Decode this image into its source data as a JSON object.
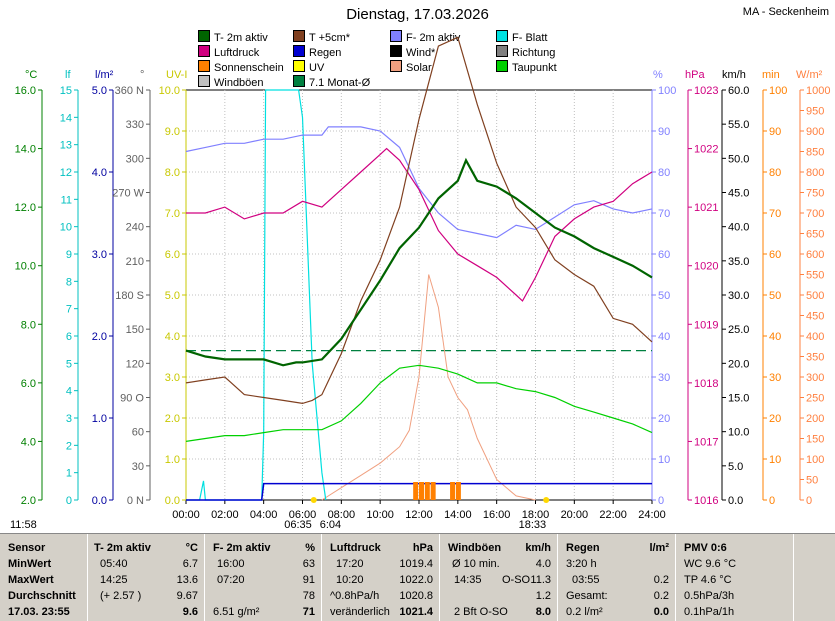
{
  "title": "Dienstag, 17.03.2026",
  "station": "MA - Seckenheim",
  "legend": [
    {
      "label": "T- 2m aktiv",
      "color": "#006400"
    },
    {
      "label": "T +5cm*",
      "color": "#804020"
    },
    {
      "label": "F- 2m aktiv",
      "color": "#8080ff"
    },
    {
      "label": "F- Blatt",
      "color": "#00e0e0"
    },
    {
      "label": "Luftdruck",
      "color": "#d00080"
    },
    {
      "label": "Regen",
      "color": "#0000d0"
    },
    {
      "label": "Wind*",
      "color": "#000000"
    },
    {
      "label": "Richtung",
      "color": "#808080"
    },
    {
      "label": "Sonnenschein",
      "color": "#ff8000"
    },
    {
      "label": "UV",
      "color": "#ffff00"
    },
    {
      "label": "Solar",
      "color": "#f0a080"
    },
    {
      "label": "Taupunkt",
      "color": "#00d000"
    },
    {
      "label": "Windböen",
      "color": "#c0c0c0"
    },
    {
      "label": "7.1 Monat-Ø",
      "color": "#008040"
    }
  ],
  "axis_headers": {
    "temp": "°C",
    "lux": "lf",
    "rain": "l/m²",
    "dir": "°",
    "uv": "UV-I",
    "hum": "%",
    "press": "hPa",
    "wind": "km/h",
    "sun": "min",
    "solar": "W/m²"
  },
  "colors": {
    "temp": "#008000",
    "lux": "#00c0c0",
    "rain": "#0000a0",
    "press": "#d00080",
    "hum": "#8080ff",
    "sun": "#ff8000",
    "uv": "#c8c800",
    "solar": "#ff8040"
  },
  "chart_data": {
    "type": "line",
    "x_ticks": [
      "00:00",
      "02:00",
      "04:00",
      "06:00",
      "08:00",
      "10:00",
      "12:00",
      "14:00",
      "16:00",
      "18:00",
      "20:00",
      "22:00",
      "24:00"
    ],
    "temp_axis": {
      "ticks": [
        "2.0",
        "4.0",
        "6.0",
        "8.0",
        "10.0",
        "12.0",
        "14.0",
        "16.0"
      ],
      "ylim": [
        2,
        16
      ]
    },
    "lux_axis": {
      "ticks": [
        "0",
        "1",
        "2",
        "3",
        "4",
        "5",
        "6",
        "7",
        "8",
        "9",
        "10",
        "11",
        "12",
        "13",
        "14",
        "15"
      ]
    },
    "rain_axis": {
      "ticks": [
        "0.0",
        "1.0",
        "2.0",
        "3.0",
        "4.0",
        "5.0"
      ]
    },
    "dir_axis": {
      "ticks": [
        "0 N",
        "30",
        "60",
        "90 O",
        "120",
        "150",
        "180 S",
        "210",
        "240",
        "270 W",
        "300",
        "330",
        "360 N"
      ]
    },
    "uv_axis": {
      "ticks": [
        "0.0",
        "1.0",
        "2.0",
        "3.0",
        "4.0",
        "5.0",
        "6.0",
        "7.0",
        "8.0",
        "9.0",
        "10.0"
      ]
    },
    "hum_axis": {
      "ticks": [
        "0",
        "10",
        "20",
        "30",
        "40",
        "50",
        "60",
        "70",
        "80",
        "90",
        "100"
      ]
    },
    "press_axis": {
      "ticks": [
        "1016",
        "1017",
        "1018",
        "1019",
        "1020",
        "1021",
        "1022",
        "1023"
      ],
      "ylim": [
        1016,
        1023
      ]
    },
    "wind_axis": {
      "ticks": [
        "0.0",
        "5.0",
        "10.0",
        "15.0",
        "20.0",
        "25.0",
        "30.0",
        "35.0",
        "40.0",
        "45.0",
        "50.0",
        "55.0",
        "60.0"
      ]
    },
    "sun_axis": {
      "ticks": [
        "0",
        "10",
        "20",
        "30",
        "40",
        "50",
        "60",
        "70",
        "80",
        "90",
        "100"
      ]
    },
    "solar_axis": {
      "ticks": [
        "0",
        "50",
        "100",
        "150",
        "200",
        "250",
        "300",
        "350",
        "400",
        "450",
        "500",
        "550",
        "600",
        "650",
        "700",
        "750",
        "800",
        "850",
        "900",
        "950",
        "1000"
      ]
    },
    "series": [
      {
        "name": "T- 2m aktiv",
        "color": "#006400",
        "x": [
          0,
          1,
          2,
          3,
          4,
          5,
          5.67,
          6,
          7,
          8,
          9,
          10,
          11,
          12,
          13,
          14,
          14.42,
          15,
          16,
          17,
          18,
          19,
          20,
          21,
          22,
          23,
          24
        ],
        "y": [
          7.1,
          6.9,
          6.8,
          6.8,
          6.8,
          6.6,
          6.7,
          6.7,
          6.8,
          7.5,
          8.5,
          9.5,
          10.6,
          11.3,
          12.3,
          12.9,
          13.6,
          12.9,
          12.7,
          12.3,
          11.8,
          11.3,
          11.0,
          10.6,
          10.3,
          10.0,
          9.6
        ]
      },
      {
        "name": "T +5cm*",
        "color": "#804020",
        "x": [
          0,
          1,
          2,
          3,
          4,
          5,
          6,
          6.5,
          7,
          8,
          9,
          10,
          11,
          12,
          13,
          14,
          15,
          16,
          17,
          18,
          19,
          20,
          21,
          22,
          23,
          24
        ],
        "y": [
          6.0,
          6.1,
          6.2,
          5.6,
          5.5,
          5.4,
          5.3,
          5.4,
          5.6,
          7.0,
          8.8,
          10.2,
          12.0,
          15.0,
          17.5,
          17.8,
          15.5,
          13.5,
          12.0,
          11.3,
          10.2,
          9.7,
          9.3,
          8.2,
          8.0,
          7.4
        ]
      },
      {
        "name": "F- 2m aktiv",
        "color": "#8080ff",
        "x": [
          0,
          1,
          2,
          3,
          4,
          5,
          6,
          7,
          7.33,
          8,
          9,
          10,
          11,
          12,
          13,
          14,
          15,
          16,
          17,
          18,
          19,
          20,
          21,
          22,
          23,
          24
        ],
        "y": [
          85,
          86,
          87,
          87,
          88,
          88,
          89,
          89,
          91,
          91,
          91,
          90,
          86,
          76,
          70,
          66,
          65,
          64,
          67,
          66,
          69,
          72,
          73,
          71,
          70,
          71
        ]
      },
      {
        "name": "Luftdruck",
        "color": "#d00080",
        "x": [
          0,
          1,
          2,
          3,
          4,
          5,
          6,
          7,
          8,
          9,
          10,
          10.33,
          11,
          12,
          13,
          14,
          15,
          16,
          17,
          17.33,
          18,
          19,
          20,
          21,
          22,
          23,
          24
        ],
        "y": [
          1020.9,
          1020.9,
          1021.0,
          1020.8,
          1020.9,
          1020.9,
          1021.1,
          1021.0,
          1021.3,
          1021.6,
          1021.9,
          1022.0,
          1021.8,
          1021.3,
          1020.6,
          1020.2,
          1020.0,
          1019.8,
          1019.5,
          1019.4,
          1019.8,
          1020.5,
          1020.8,
          1021.0,
          1021.1,
          1021.4,
          1021.6
        ]
      },
      {
        "name": "Taupunkt",
        "color": "#00d000",
        "x": [
          0,
          1,
          2,
          3,
          4,
          5,
          6,
          7,
          8,
          9,
          10,
          11,
          12,
          13,
          14,
          15,
          16,
          17,
          18,
          19,
          20,
          21,
          22,
          23,
          24
        ],
        "y": [
          4.0,
          4.1,
          4.2,
          4.2,
          4.3,
          4.4,
          4.4,
          4.4,
          4.7,
          5.3,
          6.0,
          6.5,
          6.6,
          6.5,
          6.3,
          6.0,
          6.0,
          5.8,
          5.7,
          5.5,
          5.2,
          5.0,
          4.8,
          4.6,
          4.3
        ]
      },
      {
        "name": "Solar",
        "color": "#f0a080",
        "x": [
          7,
          8,
          9,
          10,
          11,
          11.5,
          12,
          12.5,
          13,
          13.5,
          14,
          14.5,
          15,
          16,
          17,
          18
        ],
        "y": [
          0,
          30,
          60,
          90,
          130,
          170,
          300,
          550,
          470,
          300,
          250,
          220,
          150,
          50,
          10,
          0
        ]
      },
      {
        "name": "F- Blatt",
        "color": "#00e0e0",
        "x": [
          0,
          0.7,
          0.9,
          1.0,
          3.9,
          4.0,
          4.1,
          5.8,
          6.0,
          6.5,
          7.0,
          7.2
        ],
        "y": [
          0,
          0,
          0.7,
          0,
          0,
          2.5,
          15,
          15,
          14,
          5,
          1,
          0
        ]
      },
      {
        "name": "Regen",
        "color": "#0000d0",
        "x": [
          0,
          3.9,
          4.0,
          24
        ],
        "y": [
          0,
          0,
          0.2,
          0.2
        ]
      }
    ],
    "monthly_avg": {
      "name": "7.1 Monat-Ø",
      "value": 7.1
    },
    "sunrise": "06:35",
    "sunset": "18:33",
    "sun_marker_times": [
      "06:35",
      "18:33"
    ],
    "sunrise_sub": "6:04",
    "bottom_left_time": "11:58"
  },
  "table": {
    "sensor": {
      "h": "Sensor",
      "r1": "MinWert",
      "r2": "MaxWert",
      "r3": "Durchschnitt",
      "r4": "17.03. 23:55"
    },
    "temp": {
      "h": "T- 2m aktiv",
      "u": "°C",
      "r1a": "05:40",
      "r1b": "6.7",
      "r2a": "14:25",
      "r2b": "13.6",
      "r3a": "(+ 2.57 )",
      "r3b": "9.67",
      "r4b": "9.6"
    },
    "hum": {
      "h": "F- 2m aktiv",
      "u": "%",
      "r1a": "16:00",
      "r1b": "63",
      "r2a": "07:20",
      "r2b": "91",
      "r3b": "78",
      "r4a": "6.51 g/m²",
      "r4b": "71"
    },
    "press": {
      "h": "Luftdruck",
      "u": "hPa",
      "r1a": "17:20",
      "r1b": "1019.4",
      "r2a": "10:20",
      "r2b": "1022.0",
      "r3a": "^0.8hPa/h",
      "r3b": "1020.8",
      "r4a": "veränderlich",
      "r4b": "1021.4"
    },
    "wind": {
      "h": "Windböen",
      "u": "km/h",
      "r1a": "Ø 10 min.",
      "r1b": "4.0",
      "r2a": "14:35",
      "r2m": "O-SO",
      "r2b": "11.3",
      "r3b": "1.2",
      "r4a": "2 Bft O-SO",
      "r4b": "8.0"
    },
    "rain": {
      "h": "Regen",
      "u": "l/m²",
      "r1a": "3:20 h",
      "r2a": "03:55",
      "r2b": "0.2",
      "r3a": "Gesamt:",
      "r3b": "0.2",
      "r4a": "0.2 l/m²",
      "r4b": "0.0"
    },
    "pmv": {
      "h": "PMV 0:6",
      "r1": "WC 9.6 °C",
      "r2": "TP 4.6 °C",
      "r3": "0.5hPa/3h",
      "r4": "0.1hPa/1h"
    }
  }
}
